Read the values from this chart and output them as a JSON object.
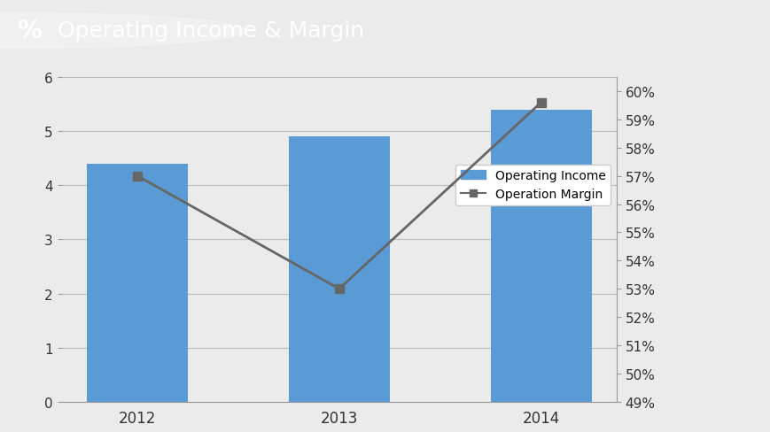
{
  "years": [
    "2012",
    "2013",
    "2014"
  ],
  "bar_values": [
    4.4,
    4.9,
    5.4
  ],
  "line_values_pct": [
    0.57,
    0.53,
    0.596
  ],
  "bar_color": "#5B9BD5",
  "line_color": "#666666",
  "line_marker": "s",
  "left_ylim": [
    0,
    6
  ],
  "left_yticks": [
    0,
    1,
    2,
    3,
    4,
    5,
    6
  ],
  "right_ylim": [
    0.49,
    0.605
  ],
  "right_yticks": [
    0.49,
    0.5,
    0.51,
    0.52,
    0.53,
    0.54,
    0.55,
    0.56,
    0.57,
    0.58,
    0.59,
    0.6
  ],
  "right_yticklabels": [
    "49%",
    "50%",
    "51%",
    "52%",
    "53%",
    "54%",
    "55%",
    "56%",
    "57%",
    "58%",
    "59%",
    "60%"
  ],
  "header_bg": "#1F4173",
  "header_text": "Operating Income & Margin",
  "header_text_color": "#FFFFFF",
  "chart_bg": "#EBEBEB",
  "plot_bg": "#EBEBEB",
  "legend_income": "Operating Income",
  "legend_margin": "Operation Margin",
  "bar_width": 0.5,
  "grid_color": "#BBBBBB"
}
